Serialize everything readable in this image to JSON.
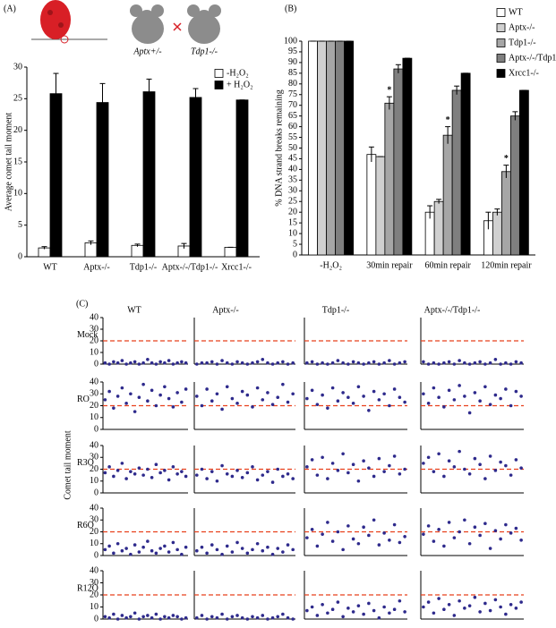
{
  "chart_data": [
    {
      "type": "bar",
      "label": "(A)",
      "ylabel": "Average comet tail moment",
      "illustration_labels": [
        "Aptx+/-",
        "Tdp1-/-"
      ],
      "categories": [
        "WT",
        "Aptx-/-",
        "Tdp1-/-",
        "Aptx-/-/Tdp1-/-",
        "Xrcc1-/-"
      ],
      "series": [
        {
          "name": "-H₂O₂",
          "color": "#ffffff",
          "values": [
            1.4,
            2.2,
            1.8,
            1.7,
            1.5
          ],
          "errors": [
            0.2,
            0.3,
            0.2,
            0.4,
            0
          ]
        },
        {
          "name": "+ H₂O₂",
          "color": "#000000",
          "values": [
            25.8,
            24.4,
            26.1,
            25.2,
            24.8
          ],
          "errors": [
            3.2,
            3.0,
            2.0,
            1.4,
            0
          ]
        }
      ],
      "ylim": [
        0,
        30
      ],
      "yticks": [
        0,
        5,
        10,
        15,
        20,
        25,
        30
      ],
      "legend": "upper right"
    },
    {
      "type": "bar",
      "label": "(B)",
      "ylabel": "% DNA strand breaks remaining",
      "categories": [
        "-H₂O₂",
        "30min repair",
        "60min repair",
        "120min repair"
      ],
      "series": [
        {
          "name": "WT",
          "color": "#ffffff",
          "values": [
            100,
            47,
            20,
            16
          ],
          "errors": [
            0,
            3.5,
            3,
            4
          ]
        },
        {
          "name": "Aptx-/-",
          "color": "#d0d0d0",
          "values": [
            100,
            46,
            25,
            20
          ],
          "errors": [
            0,
            0,
            1,
            1.5
          ]
        },
        {
          "name": "Tdp1-/-",
          "color": "#a6a6a6",
          "values": [
            100,
            71,
            56,
            39
          ],
          "errors": [
            0,
            3,
            4,
            3
          ]
        },
        {
          "name": "Aptx-/-/Tdp1-/-",
          "color": "#7f7f7f",
          "values": [
            100,
            87,
            77,
            65
          ],
          "errors": [
            0,
            2,
            2,
            2
          ]
        },
        {
          "name": "Xrcc1-/-",
          "color": "#000000",
          "values": [
            100,
            92,
            85,
            77
          ],
          "errors": [
            0,
            0,
            0,
            0
          ]
        }
      ],
      "annotations": [
        {
          "text": "*",
          "series": "Tdp1-/-",
          "category": "30min repair"
        },
        {
          "text": "*",
          "series": "Tdp1-/-",
          "category": "60min repair"
        },
        {
          "text": "*",
          "series": "Tdp1-/-",
          "category": "120min repair"
        }
      ],
      "ylim": [
        0,
        100
      ],
      "yticks": [
        0,
        5,
        10,
        15,
        20,
        25,
        30,
        35,
        40,
        45,
        50,
        55,
        60,
        65,
        70,
        75,
        80,
        85,
        90,
        95,
        100
      ],
      "legend": "upper right"
    },
    {
      "type": "strip",
      "label": "(C)",
      "ylabel": "Comet tail moment",
      "columns": [
        "WT",
        "Aptx-/-",
        "Tdp1-/-",
        "Aptx-/-/Tdp1-/-"
      ],
      "rows": [
        "Mock",
        "RO",
        "R3O",
        "R6O",
        "R12O"
      ],
      "ylim": [
        0,
        40
      ],
      "yticks": [
        0,
        10,
        20,
        30,
        40
      ],
      "threshold": 20,
      "threshold_color": "#e8401c",
      "color": "#2e2a8c",
      "values": [
        [
          [
            1,
            0,
            2,
            1,
            3,
            0,
            1,
            2,
            0,
            1,
            4,
            1,
            0,
            2,
            1,
            3,
            0,
            1,
            2,
            1
          ],
          [
            0,
            1,
            1,
            2,
            0,
            3,
            1,
            0,
            2,
            1,
            0,
            1,
            2,
            4,
            1,
            0,
            1,
            2,
            0,
            1
          ],
          [
            1,
            2,
            0,
            1,
            0,
            1,
            3,
            1,
            0,
            2,
            1,
            0,
            1,
            2,
            0,
            1,
            3,
            0,
            1,
            2
          ],
          [
            2,
            0,
            1,
            0,
            1,
            2,
            0,
            3,
            1,
            0,
            1,
            2,
            0,
            1,
            4,
            0,
            1,
            0,
            2,
            1
          ]
        ],
        [
          [
            25,
            32,
            18,
            28,
            35,
            22,
            30,
            15,
            27,
            38,
            24,
            33,
            20,
            29,
            36,
            26,
            19,
            31,
            23,
            34
          ],
          [
            28,
            20,
            34,
            24,
            30,
            17,
            36,
            26,
            22,
            32,
            29,
            19,
            35,
            25,
            31,
            21,
            27,
            38,
            23,
            30
          ],
          [
            26,
            33,
            21,
            29,
            18,
            35,
            24,
            31,
            27,
            22,
            36,
            28,
            16,
            32,
            25,
            30,
            20,
            34,
            27,
            23
          ],
          [
            30,
            22,
            35,
            27,
            19,
            33,
            25,
            37,
            28,
            14,
            31,
            24,
            36,
            21,
            29,
            26,
            34,
            20,
            32,
            28
          ]
        ],
        [
          [
            17,
            22,
            14,
            19,
            25,
            12,
            18,
            16,
            21,
            15,
            20,
            13,
            24,
            17,
            19,
            11,
            22,
            16,
            18,
            14
          ],
          [
            15,
            20,
            12,
            18,
            10,
            23,
            16,
            14,
            19,
            13,
            17,
            22,
            11,
            15,
            18,
            9,
            20,
            14,
            16,
            12
          ],
          [
            22,
            28,
            15,
            30,
            12,
            25,
            19,
            33,
            17,
            24,
            10,
            27,
            21,
            14,
            29,
            18,
            23,
            31,
            16,
            20
          ],
          [
            25,
            30,
            18,
            33,
            14,
            27,
            22,
            35,
            20,
            16,
            29,
            24,
            12,
            31,
            19,
            26,
            23,
            15,
            28,
            21
          ]
        ],
        [
          [
            5,
            8,
            2,
            10,
            4,
            6,
            1,
            9,
            3,
            7,
            12,
            4,
            2,
            6,
            8,
            3,
            11,
            5,
            1,
            7
          ],
          [
            4,
            7,
            2,
            9,
            5,
            1,
            8,
            3,
            11,
            6,
            2,
            5,
            10,
            4,
            7,
            1,
            6,
            3,
            9,
            5
          ],
          [
            15,
            22,
            8,
            18,
            28,
            12,
            20,
            5,
            25,
            14,
            10,
            24,
            17,
            30,
            9,
            19,
            13,
            26,
            11,
            16
          ],
          [
            18,
            25,
            12,
            22,
            8,
            28,
            15,
            20,
            30,
            10,
            24,
            17,
            27,
            6,
            21,
            14,
            26,
            19,
            23,
            13
          ]
        ],
        [
          [
            2,
            1,
            4,
            0,
            3,
            1,
            2,
            5,
            0,
            2,
            3,
            1,
            4,
            0,
            2,
            1,
            3,
            2,
            0,
            1
          ],
          [
            1,
            3,
            0,
            2,
            1,
            4,
            0,
            2,
            3,
            1,
            0,
            2,
            1,
            3,
            0,
            1,
            2,
            4,
            1,
            0
          ],
          [
            7,
            10,
            3,
            12,
            5,
            8,
            14,
            2,
            9,
            6,
            11,
            4,
            13,
            7,
            1,
            10,
            5,
            8,
            15,
            6
          ],
          [
            10,
            14,
            5,
            17,
            8,
            12,
            3,
            15,
            9,
            11,
            18,
            6,
            13,
            7,
            16,
            10,
            4,
            12,
            9,
            14
          ]
        ]
      ]
    }
  ]
}
